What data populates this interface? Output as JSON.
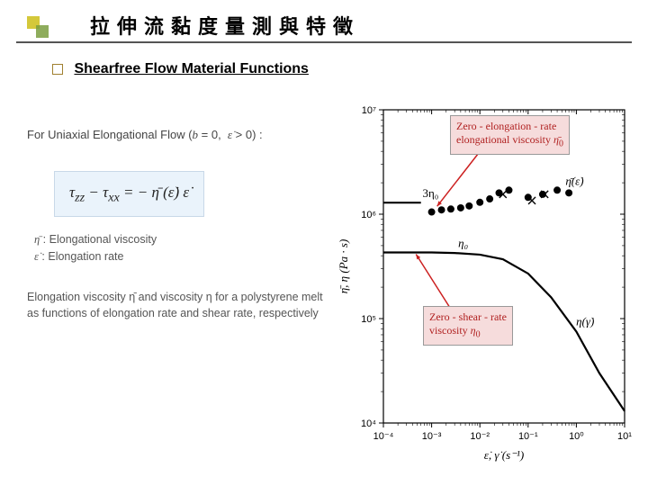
{
  "header": {
    "title": "拉伸流黏度量測與特徵",
    "subtitle": "Shearfree Flow Material Functions"
  },
  "left": {
    "para1": "For Uniaxial Elongational Flow (b = 0, ε̇ > 0) :",
    "equation": "τ_zz − τ_xx = − η̄ (ε̇) ε̇",
    "def1": "η̄ : Elongational viscosity",
    "def2": "ε̇ : Elongation rate",
    "caption": "Elongation viscosity η̄ and viscosity η for a polystyrene melt as functions of elongation rate and shear rate, respectively"
  },
  "chart": {
    "type": "loglog-line-scatter",
    "background_color": "#ffffff",
    "axis_color": "#000000",
    "xlim": [
      0.0001,
      10.0
    ],
    "ylim": [
      10000.0,
      10000000.0
    ],
    "xticks": [
      0.0001,
      0.001,
      0.01,
      0.1,
      1.0,
      10.0
    ],
    "xtick_labels": [
      "10⁻⁴",
      "10⁻³",
      "10⁻²",
      "10⁻¹",
      "10⁰",
      "10¹"
    ],
    "yticks": [
      10000.0,
      100000.0,
      1000000.0,
      10000000.0
    ],
    "ytick_labels": [
      "10⁴",
      "10⁵",
      "10⁶",
      "10⁷"
    ],
    "xlabel": "ε̇, γ̇ (s⁻¹)",
    "ylabel": "η̄, η (Pa · s)",
    "label_fontsize": 13,
    "tick_fontsize": 11,
    "line_color": "#000000",
    "line_width": 2.2,
    "marker_color": "#000000",
    "marker_size": 4,
    "eta_curve": {
      "x": [
        0.0001,
        0.001,
        0.003,
        0.01,
        0.03,
        0.1,
        0.3,
        1.0,
        3.0,
        10.0
      ],
      "y": [
        430000.0,
        430000.0,
        425000.0,
        410000.0,
        370000.0,
        270000.0,
        160000.0,
        75000.0,
        30000.0,
        13000.0
      ]
    },
    "etabar_points_circle": {
      "x": [
        0.001,
        0.0016,
        0.0025,
        0.004,
        0.006,
        0.01,
        0.016,
        0.025,
        0.04,
        0.1,
        0.2,
        0.4,
        0.7
      ],
      "y": [
        1050000.0,
        1100000.0,
        1120000.0,
        1150000.0,
        1200000.0,
        1300000.0,
        1400000.0,
        1600000.0,
        1700000.0,
        1450000.0,
        1550000.0,
        1700000.0,
        1600000.0
      ]
    },
    "etabar_points_cross": {
      "x": [
        0.03,
        0.12,
        0.22
      ],
      "y": [
        1550000.0,
        1350000.0,
        1550000.0
      ]
    },
    "three_eta0_line": 1290000.0,
    "callout1": {
      "text1": "Zero - elongation - rate",
      "text2": "elongational viscosity η̄₀",
      "text_color": "#b02020"
    },
    "callout2": {
      "text1": "Zero - shear - rate",
      "text2": "viscosity η₀",
      "text_color": "#b02020"
    },
    "label_3eta0": "3η₀",
    "label_eta0": "η₀",
    "label_etabar_e": "η̄(ε̇)",
    "label_eta_g": "η(γ̇)",
    "arrow_color": "#cc2020"
  }
}
